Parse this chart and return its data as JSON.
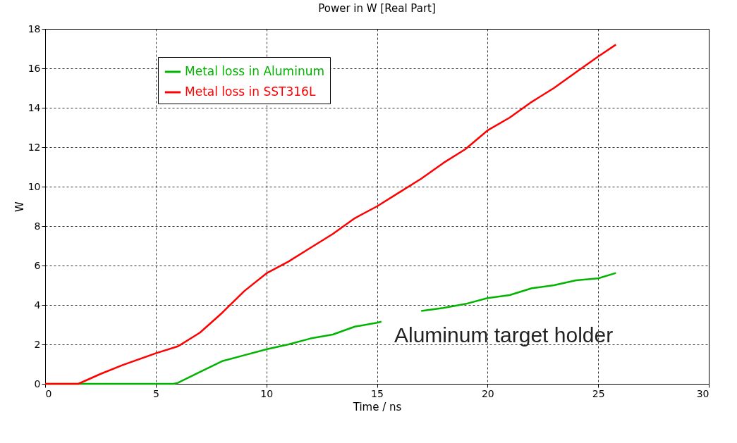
{
  "chart_data": {
    "type": "line",
    "title": "Power in W [Real Part]",
    "xlabel": "Time / ns",
    "ylabel": "W",
    "xlim": [
      0,
      30
    ],
    "xticks": [
      0,
      5,
      10,
      15,
      20,
      25,
      30
    ],
    "ylim": [
      0,
      18
    ],
    "yticks": [
      0,
      2,
      4,
      6,
      8,
      10,
      12,
      14,
      16,
      18
    ],
    "grid": true,
    "legend": "top left",
    "line_style": "solid",
    "marker": "none",
    "annotations": [
      "Aluminum target holder"
    ],
    "series": [
      {
        "name": "Metal loss in Aluminum",
        "color": "#00b400",
        "x": [
          0,
          5.8,
          6,
          7,
          8,
          9,
          10,
          11,
          12,
          13,
          14,
          15,
          15.2,
          16,
          17,
          18,
          19,
          20,
          21,
          22,
          23,
          24,
          25,
          25.8
        ],
        "values": [
          0,
          0,
          0.05,
          0.6,
          1.15,
          1.45,
          1.75,
          2.0,
          2.3,
          2.5,
          2.9,
          3.1,
          3.15,
          null,
          3.7,
          3.85,
          4.05,
          4.35,
          4.5,
          4.85,
          5.0,
          5.25,
          5.35,
          5.62
        ]
      },
      {
        "name": "Metal loss in SST316L",
        "color": "#ff0000",
        "x": [
          0,
          1.5,
          2.5,
          3.5,
          5,
          6,
          7,
          8,
          9,
          10,
          11,
          12,
          13,
          14,
          15,
          16,
          17,
          18,
          19,
          20,
          21,
          22,
          23,
          24,
          25,
          25.8
        ],
        "values": [
          0,
          0,
          0.5,
          0.95,
          1.55,
          1.9,
          2.6,
          3.6,
          4.7,
          5.6,
          6.2,
          6.9,
          7.6,
          8.4,
          9.0,
          9.7,
          10.4,
          11.2,
          11.9,
          12.85,
          13.5,
          14.3,
          15.0,
          15.8,
          16.6,
          17.2
        ]
      }
    ]
  }
}
